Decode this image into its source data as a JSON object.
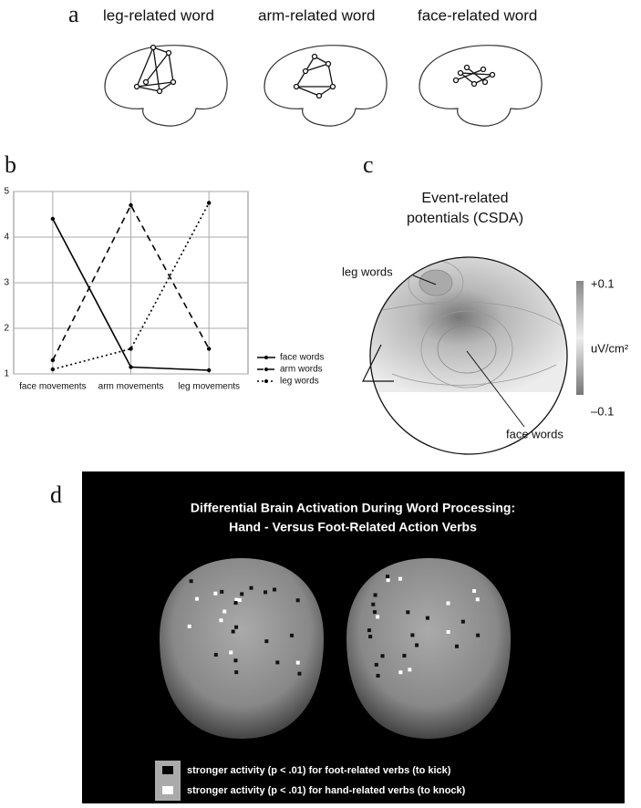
{
  "panel_a": {
    "label": "a",
    "words": [
      "leg-related word",
      "arm-related word",
      "face-related word"
    ]
  },
  "chart_data": {
    "type": "line",
    "panel_label": "b",
    "categories": [
      "face movements",
      "arm movements",
      "leg movements"
    ],
    "series": [
      {
        "name": "face words",
        "color": "#000000",
        "dash": "solid",
        "values": [
          4.4,
          1.15,
          1.08
        ]
      },
      {
        "name": "arm words",
        "color": "#000000",
        "dash": "dashed",
        "values": [
          1.3,
          4.7,
          1.55
        ]
      },
      {
        "name": "leg words",
        "color": "#000000",
        "dash": "dotted",
        "values": [
          1.1,
          1.55,
          4.75
        ]
      }
    ],
    "ylim": [
      1,
      5
    ],
    "yticks": [
      1,
      2,
      3,
      4,
      5
    ],
    "grid": true,
    "legend": "right"
  },
  "panel_c": {
    "label": "c",
    "title": [
      "Event-related",
      "potentials (CSDA)"
    ],
    "leg_label": "leg words",
    "face_label": "face words",
    "colorbar": {
      "top": "+0.1",
      "unit": "uV/cm²",
      "bottom": "–0.1"
    }
  },
  "panel_d": {
    "label": "d",
    "title": [
      "Differential Brain Activation During Word Processing:",
      "Hand - Versus Foot-Related Action Verbs"
    ],
    "legend": [
      "stronger activity (p < .01) for foot-related verbs (to kick)",
      "stronger activity (p < .01) for hand-related verbs (to knock)"
    ]
  }
}
